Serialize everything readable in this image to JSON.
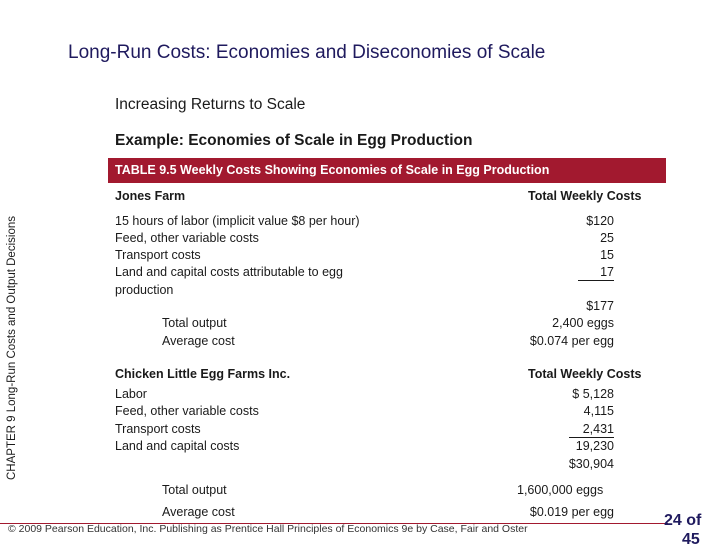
{
  "slide": {
    "title": "Long-Run Costs: Economies and Diseconomies of Scale",
    "section_heading": "Increasing Returns to Scale",
    "example_heading": "Example: Economies of Scale in Egg Production",
    "side_label": "CHAPTER 9 Long-Run Costs and Output Decisions",
    "copyright": "© 2009 Pearson Education, Inc. Publishing as Prentice Hall Principles of Economics 9e by Case, Fair and Oster",
    "page_number": "24 of",
    "page_total": "45",
    "accent_color": "#a2192f"
  },
  "table": {
    "caption": "TABLE 9.5 Weekly Costs Showing Economies of Scale in Egg Production",
    "jones": {
      "header": "Jones Farm",
      "cost_header": "Total Weekly Costs",
      "items": [
        {
          "label": "15 hours of labor (implicit value $8 per hour)",
          "cost": "$120"
        },
        {
          "label": "Feed, other variable costs",
          "cost": "25"
        },
        {
          "label": "Transport costs",
          "cost": "15"
        },
        {
          "label": "Land and capital costs attributable to egg",
          "label2": "production",
          "cost": "17"
        }
      ],
      "total_cost": "$177",
      "total_output_label": "Total output",
      "total_output": "2,400 eggs",
      "average_cost_label": "Average cost",
      "average_cost": "$0.074 per egg"
    },
    "chicken": {
      "header": "Chicken Little Egg Farms Inc.",
      "cost_header": "Total Weekly Costs",
      "items": [
        {
          "label": "Labor",
          "cost": "$ 5,128"
        },
        {
          "label": "Feed, other variable costs",
          "cost": "4,115"
        },
        {
          "label": "Transport costs",
          "cost": "2,431"
        },
        {
          "label": "Land and capital costs",
          "cost": "19,230"
        }
      ],
      "total_cost": "$30,904",
      "total_output_label": "Total output",
      "total_output": "1,600,000 eggs",
      "average_cost_label": "Average cost",
      "average_cost": "$0.019 per egg"
    }
  }
}
